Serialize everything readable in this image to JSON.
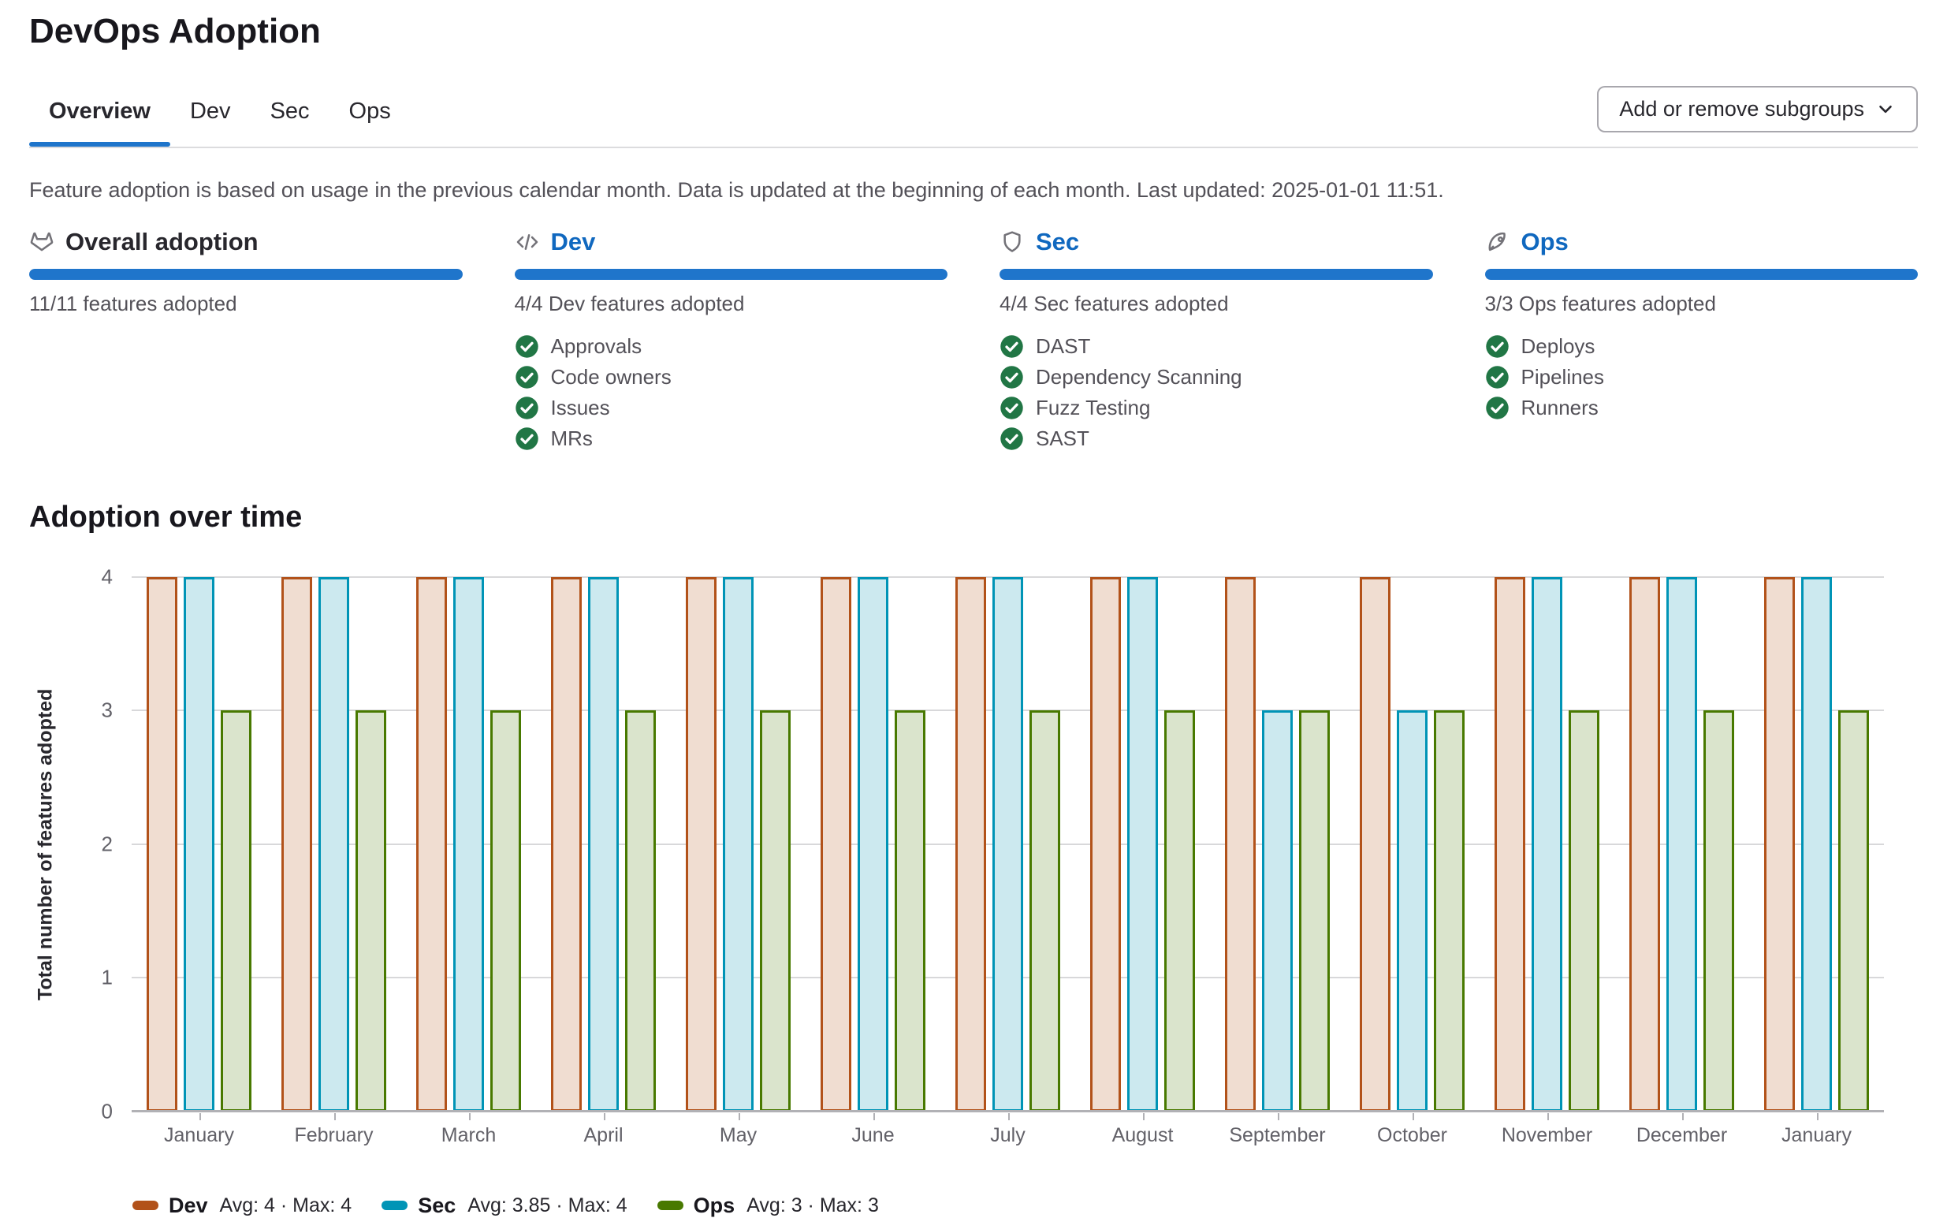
{
  "page": {
    "title": "DevOps Adoption"
  },
  "tabs": [
    {
      "label": "Overview",
      "active": true
    },
    {
      "label": "Dev",
      "active": false
    },
    {
      "label": "Sec",
      "active": false
    },
    {
      "label": "Ops",
      "active": false
    }
  ],
  "subgroups_button": {
    "label": "Add or remove subgroups"
  },
  "description": "Feature adoption is based on usage in the previous calendar month. Data is updated at the beginning of each month. Last updated: 2025-01-01 11:51.",
  "cards": [
    {
      "id": "overall",
      "icon": "tanuki-icon",
      "title": "Overall adoption",
      "is_link": false,
      "progress_percent": 100,
      "subtitle": "11/11 features adopted",
      "features": []
    },
    {
      "id": "dev",
      "icon": "code-icon",
      "title": "Dev",
      "is_link": true,
      "progress_percent": 100,
      "subtitle": "4/4 Dev features adopted",
      "features": [
        "Approvals",
        "Code owners",
        "Issues",
        "MRs"
      ]
    },
    {
      "id": "sec",
      "icon": "shield-icon",
      "title": "Sec",
      "is_link": true,
      "progress_percent": 100,
      "subtitle": "4/4 Sec features adopted",
      "features": [
        "DAST",
        "Dependency Scanning",
        "Fuzz Testing",
        "SAST"
      ]
    },
    {
      "id": "ops",
      "icon": "rocket-icon",
      "title": "Ops",
      "is_link": true,
      "progress_percent": 100,
      "subtitle": "3/3 Ops features adopted",
      "features": [
        "Deploys",
        "Pipelines",
        "Runners"
      ]
    }
  ],
  "chart_data": {
    "type": "bar",
    "title": "Adoption over time",
    "xlabel": "",
    "ylabel": "Total number of features adopted",
    "ylim": [
      0,
      4
    ],
    "yticks": [
      0,
      1,
      2,
      3,
      4
    ],
    "grid": true,
    "legend_position": "bottom-left",
    "categories": [
      "January",
      "February",
      "March",
      "April",
      "May",
      "June",
      "July",
      "August",
      "September",
      "October",
      "November",
      "December",
      "January"
    ],
    "series": [
      {
        "name": "Dev",
        "color": "#b2521a",
        "fill": "#f0ddd1",
        "values": [
          4,
          4,
          4,
          4,
          4,
          4,
          4,
          4,
          4,
          4,
          4,
          4,
          4
        ],
        "legend_stats": "Avg: 4 · Max: 4"
      },
      {
        "name": "Sec",
        "color": "#0094b6",
        "fill": "#cce9ef",
        "values": [
          4,
          4,
          4,
          4,
          4,
          4,
          4,
          4,
          3,
          3,
          4,
          4,
          4
        ],
        "legend_stats": "Avg: 3.85 · Max: 4"
      },
      {
        "name": "Ops",
        "color": "#487900",
        "fill": "#dae4cc",
        "values": [
          3,
          3,
          3,
          3,
          3,
          3,
          3,
          3,
          3,
          3,
          3,
          3,
          3
        ],
        "legend_stats": "Avg: 3 · Max: 3"
      }
    ]
  },
  "colors": {
    "accent_blue": "#1f75cb",
    "link_blue": "#1068bf",
    "check_green": "#217645"
  }
}
